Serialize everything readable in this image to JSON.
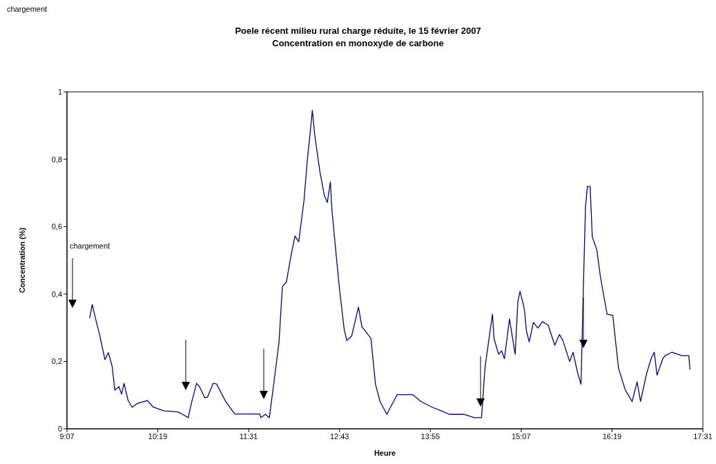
{
  "chart_data": {
    "type": "line",
    "title": "Poele récent milieu rural charge réduite, le 15 février 2007",
    "subtitle": "Concentration en monoxyde de carbone",
    "xlabel": "Heure",
    "ylabel": "Concentration (%)",
    "annotations": [
      "chargement",
      "chargement"
    ],
    "x": [
      9.417,
      9.45,
      9.504,
      9.542,
      9.618,
      9.663,
      9.713,
      9.749,
      9.803,
      9.839,
      9.87,
      9.924,
      9.978,
      10.043,
      10.178,
      10.253,
      10.403,
      10.583,
      10.643,
      10.718,
      10.763,
      10.829,
      10.868,
      10.937,
      10.973,
      11.048,
      11.093,
      11.213,
      11.333,
      11.663,
      11.678,
      11.737,
      11.79,
      11.843,
      11.917,
      11.962,
      12.016,
      12.068,
      12.128,
      12.178,
      12.248,
      12.293,
      12.322,
      12.358,
      12.389,
      12.457,
      12.517,
      12.556,
      12.596,
      12.616,
      12.682,
      12.718,
      12.778,
      12.812,
      12.877,
      12.967,
      13.012,
      13.132,
      13.192,
      13.252,
      13.342,
      13.477,
      13.687,
      13.792,
      13.942,
      14.062,
      14.167,
      14.362,
      14.497,
      14.593,
      14.638,
      14.692,
      14.737,
      14.758,
      14.818,
      14.857,
      14.895,
      14.962,
      15.037,
      15.073,
      15.102,
      15.157,
      15.187,
      15.223,
      15.277,
      15.337,
      15.397,
      15.472,
      15.561,
      15.622,
      15.667,
      15.757,
      15.802,
      15.862,
      15.907,
      15.937,
      15.966,
      15.991,
      16.027,
      16.056,
      16.116,
      16.162,
      16.207,
      16.252,
      16.326,
      16.402,
      16.492,
      16.582,
      16.648,
      16.693,
      16.776,
      16.836,
      16.875,
      16.911,
      16.986,
      17.016,
      17.106,
      17.241,
      17.331,
      17.346
    ],
    "series": [
      {
        "color": "#000080",
        "values": [
          0.328,
          0.369,
          0.318,
          0.285,
          0.205,
          0.226,
          0.186,
          0.115,
          0.125,
          0.103,
          0.135,
          0.084,
          0.064,
          0.075,
          0.084,
          0.065,
          0.053,
          0.05,
          0.043,
          0.033,
          0.078,
          0.135,
          0.125,
          0.092,
          0.094,
          0.135,
          0.133,
          0.081,
          0.044,
          0.044,
          0.033,
          0.043,
          0.033,
          0.125,
          0.255,
          0.422,
          0.436,
          0.504,
          0.572,
          0.555,
          0.678,
          0.801,
          0.863,
          0.945,
          0.873,
          0.764,
          0.692,
          0.672,
          0.733,
          0.651,
          0.494,
          0.412,
          0.296,
          0.262,
          0.275,
          0.361,
          0.303,
          0.268,
          0.132,
          0.081,
          0.043,
          0.101,
          0.101,
          0.081,
          0.064,
          0.053,
          0.043,
          0.043,
          0.033,
          0.033,
          0.18,
          0.268,
          0.34,
          0.268,
          0.221,
          0.231,
          0.208,
          0.326,
          0.221,
          0.378,
          0.408,
          0.357,
          0.289,
          0.258,
          0.316,
          0.299,
          0.318,
          0.308,
          0.248,
          0.28,
          0.262,
          0.2,
          0.227,
          0.166,
          0.132,
          0.412,
          0.658,
          0.719,
          0.719,
          0.569,
          0.531,
          0.453,
          0.395,
          0.34,
          0.337,
          0.18,
          0.115,
          0.081,
          0.139,
          0.081,
          0.166,
          0.21,
          0.227,
          0.159,
          0.207,
          0.217,
          0.227,
          0.217,
          0.217,
          0.176
        ]
      }
    ],
    "xlim": [
      9.1167,
      17.5167
    ],
    "xticks": [
      {
        "value": 9.1167,
        "label": "9:07"
      },
      {
        "value": 10.3167,
        "label": "10:19"
      },
      {
        "value": 11.5167,
        "label": "11:31"
      },
      {
        "value": 12.7167,
        "label": "12:43"
      },
      {
        "value": 13.9167,
        "label": "13:55"
      },
      {
        "value": 15.1167,
        "label": "15:07"
      },
      {
        "value": 16.3167,
        "label": "16:19"
      },
      {
        "value": 17.5167,
        "label": "17:31"
      }
    ],
    "ylim": [
      0,
      1
    ],
    "yticks": [
      0,
      {
        "value": 0.2,
        "label": "0,2"
      },
      {
        "value": 0.4,
        "label": "0,4"
      },
      {
        "value": 0.6,
        "label": "0,6"
      },
      {
        "value": 0.8,
        "label": "0,8"
      },
      1
    ],
    "grid": false,
    "legend": false,
    "marker": "none",
    "line_style": "solid"
  }
}
